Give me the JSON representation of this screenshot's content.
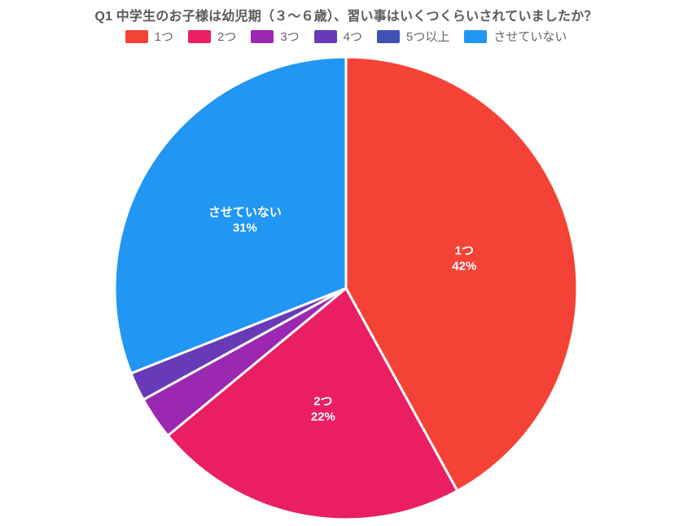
{
  "chart_data": {
    "type": "pie",
    "title": "Q1 中学生のお子様は幼児期（３〜６歳）、習い事はいくつくらいされていましたか？",
    "categories": [
      "1つ",
      "2つ",
      "3つ",
      "4つ",
      "5つ以上",
      "させていない"
    ],
    "values": [
      42,
      22,
      3,
      2,
      0,
      31
    ],
    "colors": [
      "#f44336",
      "#e91e63",
      "#9c27b0",
      "#673ab7",
      "#3f51b5",
      "#2196f3"
    ],
    "labels_shown": [
      true,
      true,
      false,
      false,
      false,
      true
    ],
    "label_format": "{category} {value}%",
    "label_color": "#ffffff",
    "border_color": "#ffffff",
    "legend_position": "top",
    "start_angle_deg": 0,
    "direction": "clockwise"
  }
}
